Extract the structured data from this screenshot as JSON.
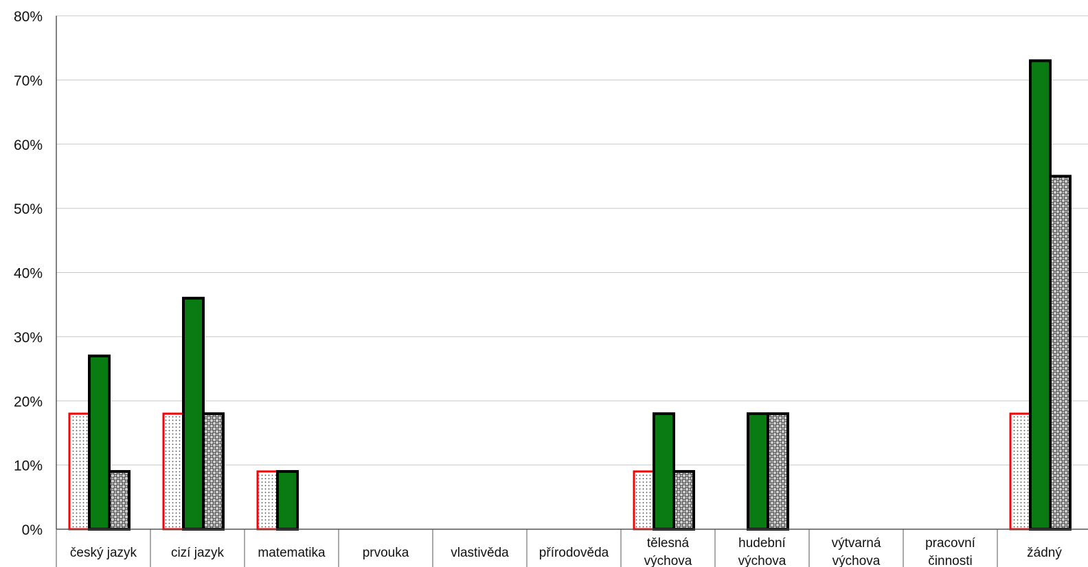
{
  "chart_data": {
    "type": "bar",
    "title": "",
    "xlabel": "",
    "ylabel": "",
    "ylim": [
      0,
      80
    ],
    "yticks": [
      "0%",
      "10%",
      "20%",
      "30%",
      "40%",
      "50%",
      "60%",
      "70%",
      "80%"
    ],
    "grid": true,
    "legend": "none",
    "categories": [
      [
        "český jazyk"
      ],
      [
        "cizí jazyk"
      ],
      [
        "matematika"
      ],
      [
        "prvouka"
      ],
      [
        "vlastivěda"
      ],
      [
        "přírodověda"
      ],
      [
        "tělesná",
        "výchova"
      ],
      [
        "hudební",
        "výchova"
      ],
      [
        "výtvarná",
        "výchova"
      ],
      [
        "pracovní",
        "činnosti"
      ],
      [
        "žádný"
      ]
    ],
    "series": [
      {
        "values": [
          18,
          18,
          9,
          0,
          0,
          0,
          9,
          0,
          0,
          0,
          18
        ],
        "style": "dotted-white",
        "stroke": "#ff0000"
      },
      {
        "values": [
          27,
          36,
          9,
          0,
          0,
          0,
          18,
          18,
          0,
          0,
          73
        ],
        "style": "solid",
        "fill": "#0a7a12",
        "stroke": "#000000"
      },
      {
        "values": [
          9,
          18,
          0,
          0,
          0,
          0,
          9,
          18,
          0,
          0,
          55
        ],
        "style": "crosshatch-grey",
        "stroke": "#000000"
      }
    ],
    "colors": {
      "grid": "#c8c8c8",
      "axis": "#555555",
      "green": "#0a7a12",
      "red_outline": "#ff0000"
    }
  }
}
